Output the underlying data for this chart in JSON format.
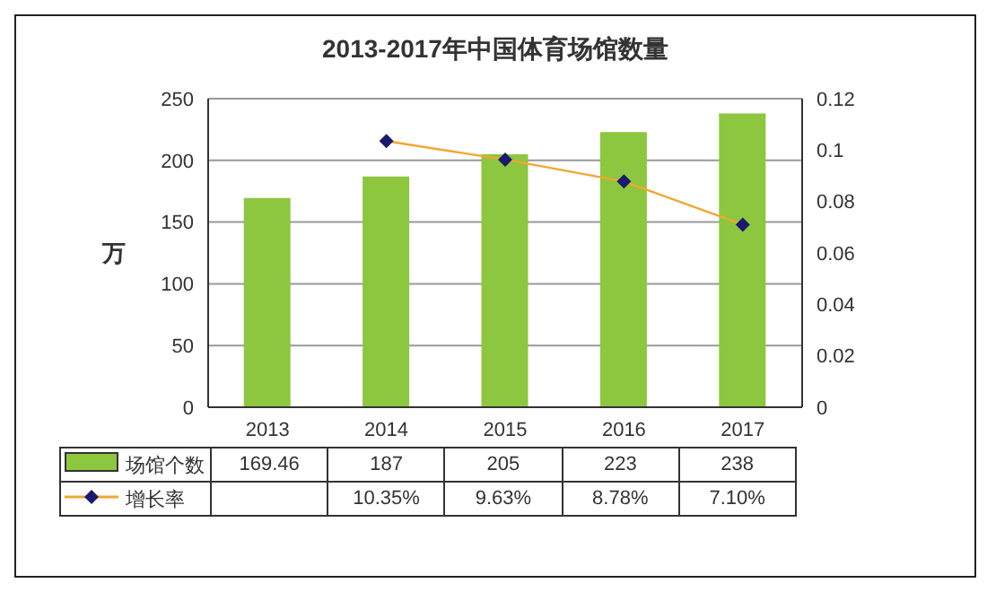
{
  "chart_data": {
    "type": "bar",
    "title": "2013-2017年中国体育场馆数量",
    "ylabel": "万",
    "categories": [
      "2013",
      "2014",
      "2015",
      "2016",
      "2017"
    ],
    "series": [
      {
        "name": "场馆个数",
        "color": "#8dc63f",
        "values": [
          169.46,
          187,
          205,
          223,
          238
        ],
        "value_labels": [
          "169.46",
          "187",
          "205",
          "223",
          "238"
        ]
      },
      {
        "name": "增长率",
        "type": "line",
        "axis": "y2",
        "color": "#f0a830",
        "marker": "diamond",
        "values": [
          null,
          0.1035,
          0.0963,
          0.0878,
          0.071
        ],
        "value_labels": [
          null,
          "10.35%",
          "9.63%",
          "8.78%",
          "7.10%"
        ]
      }
    ],
    "ylim": [
      0,
      250
    ],
    "yticks": [
      0,
      50,
      100,
      150,
      200,
      250
    ],
    "y2lim": [
      0,
      0.12
    ],
    "y2ticks": [
      0,
      0.02,
      0.04,
      0.06,
      0.08,
      0.1,
      0.12
    ],
    "grid": "y",
    "legend": "bottom"
  }
}
